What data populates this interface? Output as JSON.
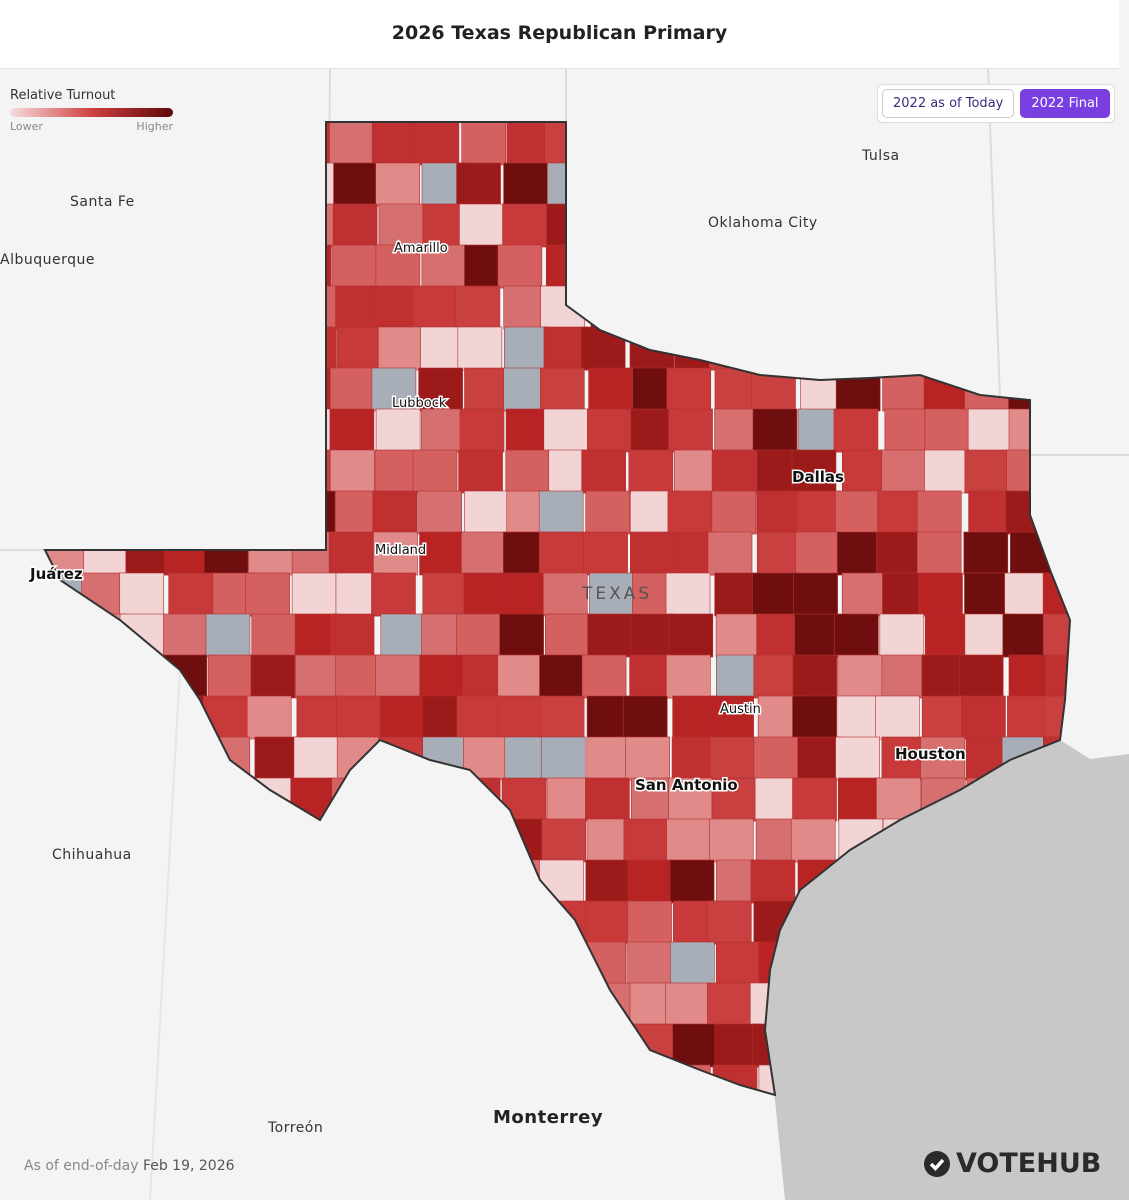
{
  "header": {
    "title": "2026 Texas Republican Primary"
  },
  "legend": {
    "title": "Relative Turnout",
    "low": "Lower",
    "high": "Higher"
  },
  "buttons": [
    "2022 as of Today",
    "2022 Final"
  ],
  "places": [
    "Santa Fe",
    "Albuquerque",
    "Tulsa",
    "Oklahoma City",
    "Amarillo",
    "Lubbock",
    "Dallas",
    "Midland",
    "Juárez",
    "TEXAS",
    "Austin",
    "Houston",
    "San Antonio",
    "Chihuahua",
    "Torreón",
    "Monterrey"
  ],
  "footer": {
    "prefix": "As of end-of-day",
    "date": "Feb 19, 2026"
  },
  "brand": "VOTEHUB"
}
